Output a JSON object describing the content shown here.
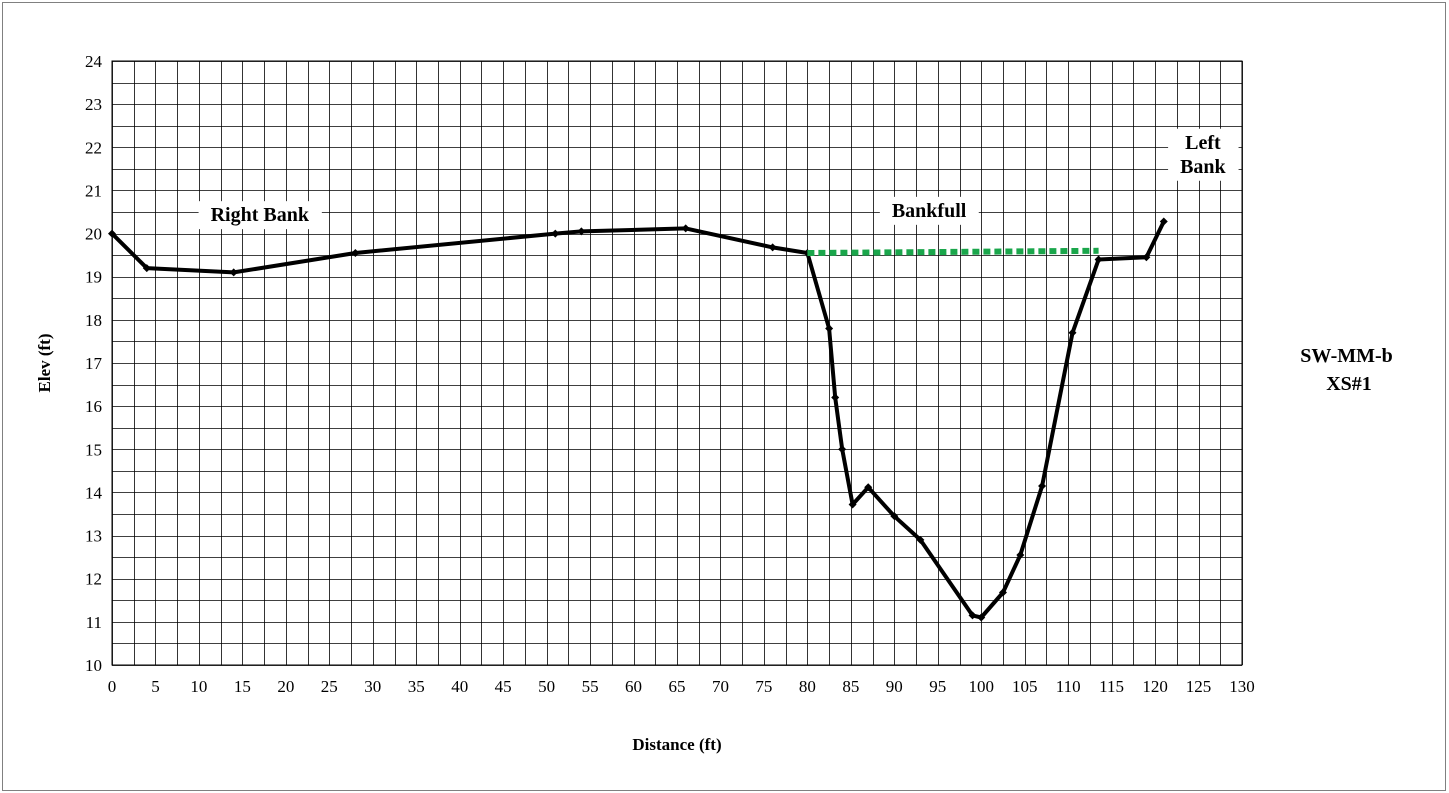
{
  "chart_data": {
    "type": "line",
    "title": [
      "SW-MM-b",
      "XS#1"
    ],
    "xlabel": "Distance (ft)",
    "ylabel": "Elev (ft)",
    "xlim": [
      0,
      130
    ],
    "ylim": [
      10,
      24
    ],
    "x_ticks": [
      0,
      5,
      10,
      15,
      20,
      25,
      30,
      35,
      40,
      45,
      50,
      55,
      60,
      65,
      70,
      75,
      80,
      85,
      90,
      95,
      100,
      105,
      110,
      115,
      120,
      125,
      130
    ],
    "y_ticks": [
      10,
      11,
      12,
      13,
      14,
      15,
      16,
      17,
      18,
      19,
      20,
      21,
      22,
      23,
      24
    ],
    "grid": true,
    "x_minor_step": 2.5,
    "y_minor_step": 0.5,
    "series": [
      {
        "style": "solid",
        "color": "#000000",
        "markers": true,
        "x": [
          0,
          4,
          14,
          28,
          51,
          54,
          66,
          76,
          80,
          82.5,
          83.2,
          84,
          85.2,
          87,
          90,
          93,
          99,
          100,
          102.5,
          104.5,
          107,
          110.5,
          113.5,
          119,
          121
        ],
        "y": [
          20,
          19.2,
          19.1,
          19.55,
          20.0,
          20.05,
          20.12,
          19.68,
          19.55,
          17.8,
          16.2,
          15.0,
          13.72,
          14.12,
          13.45,
          12.9,
          11.15,
          11.1,
          11.68,
          12.55,
          14.15,
          17.7,
          19.4,
          19.45,
          20.28
        ]
      },
      {
        "style": "dotted",
        "color": "#1aa64b",
        "markers": false,
        "x": [
          80,
          113.5
        ],
        "y": [
          19.55,
          19.6
        ]
      }
    ],
    "annotations": [
      {
        "text": "Right Bank",
        "x": 17,
        "y": 20.45
      },
      {
        "text": "Bankfull",
        "x": 94,
        "y": 20.55
      },
      {
        "text": [
          "Left",
          "Bank"
        ],
        "x": 125.5,
        "y": 21.85
      }
    ]
  }
}
